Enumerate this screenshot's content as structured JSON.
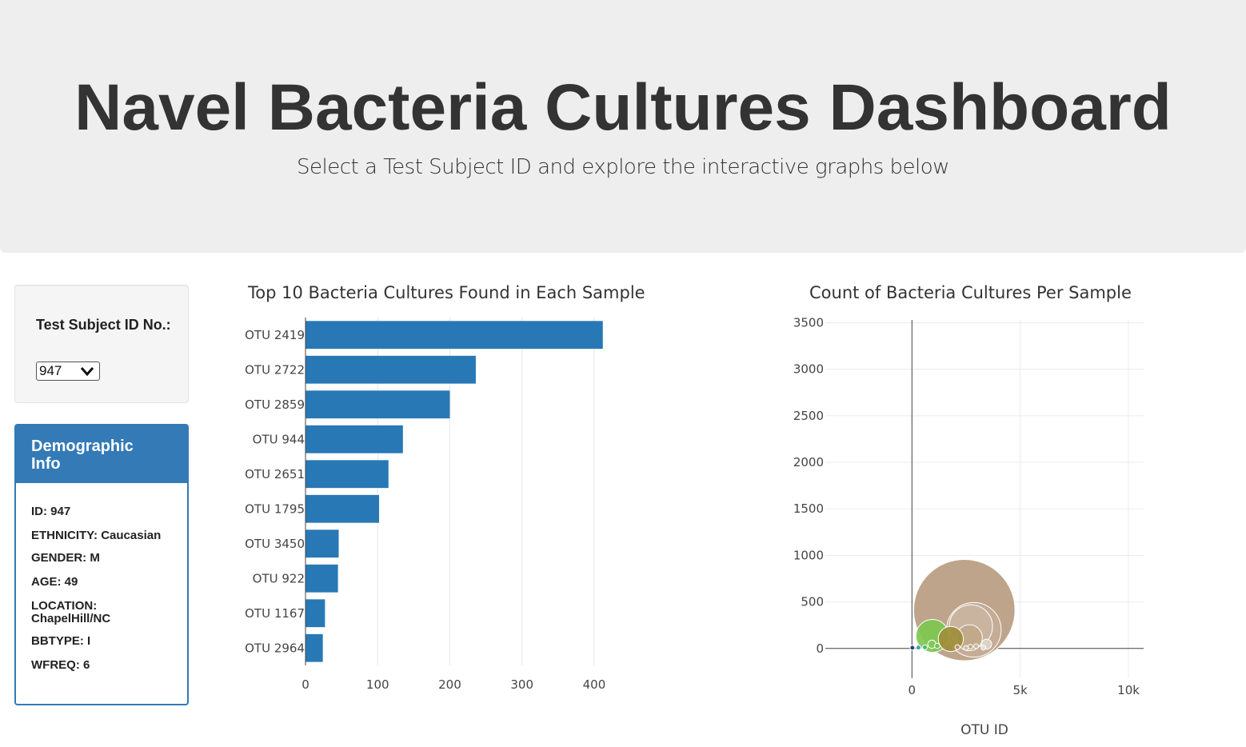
{
  "header": {
    "title": "Navel Bacteria Cultures Dashboard",
    "subtitle": "Select a Test Subject ID and explore the interactive graphs below"
  },
  "selector": {
    "label": "Test Subject ID No.:",
    "selected": "947"
  },
  "demographics": {
    "heading": "Demographic Info",
    "rows": [
      "ID: 947",
      "ETHNICITY: Caucasian",
      "GENDER: M",
      "AGE: 49",
      "LOCATION: ChapelHill/NC",
      "BBTYPE: I",
      "WFREQ: 6"
    ]
  },
  "chart_data": [
    {
      "type": "bar",
      "orientation": "horizontal",
      "title": "Top 10 Bacteria Cultures Found in Each Sample",
      "categories": [
        "OTU 2419",
        "OTU 2722",
        "OTU 2859",
        "OTU 944",
        "OTU 2651",
        "OTU 1795",
        "OTU 3450",
        "OTU 922",
        "OTU 1167",
        "OTU 2964"
      ],
      "values": [
        412,
        236,
        200,
        135,
        115,
        102,
        46,
        45,
        27,
        24
      ],
      "xlim": [
        0,
        430
      ],
      "xticks": [
        0,
        100,
        200,
        300,
        400
      ],
      "color": "#2878b5",
      "grid": true
    },
    {
      "type": "scatter",
      "subtype": "bubble",
      "title": "Count of Bacteria Cultures Per Sample",
      "xlabel": "OTU ID",
      "ylabel": "",
      "xlim": [
        -4000,
        10700
      ],
      "ylim": [
        -320,
        3530
      ],
      "xticks": [
        {
          "v": 0,
          "label": "0"
        },
        {
          "v": 5000,
          "label": "5k"
        },
        {
          "v": 10000,
          "label": "10k"
        }
      ],
      "yticks": [
        0,
        500,
        1000,
        1500,
        2000,
        2500,
        3000,
        3500
      ],
      "grid": true,
      "points": [
        {
          "x": 2419,
          "y": 412,
          "r": 2340,
          "color": "#b89c80"
        },
        {
          "x": 2859,
          "y": 200,
          "r": 1260,
          "color": "#c4ad98"
        },
        {
          "x": 2722,
          "y": 236,
          "r": 1000,
          "color": "#c8b4a0"
        },
        {
          "x": 944,
          "y": 135,
          "r": 760,
          "color": "#7ec850"
        },
        {
          "x": 2651,
          "y": 115,
          "r": 600,
          "color": "#c0a888"
        },
        {
          "x": 1795,
          "y": 102,
          "r": 580,
          "color": "#a08e3a"
        },
        {
          "x": 3450,
          "y": 46,
          "r": 230,
          "color": "#ddd5c6"
        },
        {
          "x": 922,
          "y": 45,
          "r": 190,
          "color": "#86c858"
        },
        {
          "x": 1167,
          "y": 27,
          "r": 120,
          "color": "#6ec050"
        },
        {
          "x": 2964,
          "y": 24,
          "r": 90,
          "color": "#c4b8aa"
        },
        {
          "x": 2700,
          "y": 18,
          "r": 70,
          "color": "#c9a58a"
        },
        {
          "x": 2100,
          "y": 14,
          "r": 60,
          "color": "#b49070"
        },
        {
          "x": 600,
          "y": 12,
          "r": 50,
          "color": "#4ab36b"
        },
        {
          "x": 300,
          "y": 10,
          "r": 45,
          "color": "#3f9aa8"
        },
        {
          "x": 20,
          "y": 8,
          "r": 45,
          "color": "#1f3f7a"
        },
        {
          "x": 3300,
          "y": 8,
          "r": 40,
          "color": "#e2dbd0"
        },
        {
          "x": 2500,
          "y": 6,
          "r": 38,
          "color": "#cfc2b4"
        }
      ]
    }
  ]
}
